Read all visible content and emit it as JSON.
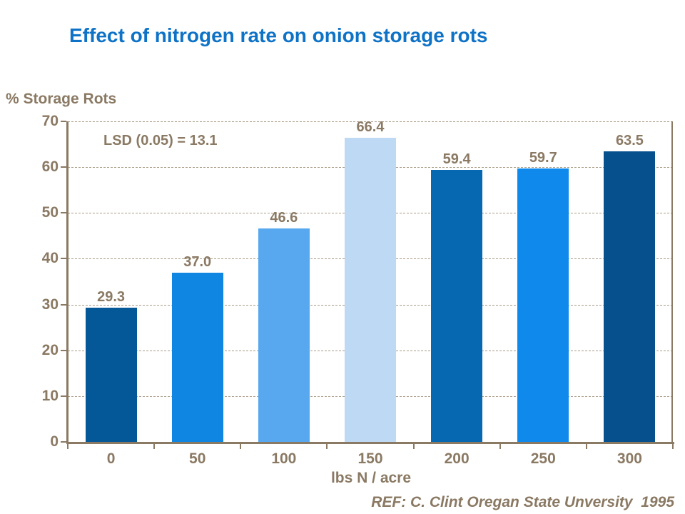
{
  "slide": {
    "title": "Effect of nitrogen rate on onion storage rots",
    "y_axis_title": "% Storage Rots",
    "annotation": "LSD (0.05) = 13.1",
    "x_axis_title": "lbs N / acre",
    "footer": "REF: C. Clint Oregan State Unversity  1995"
  },
  "colors": {
    "title_blue": "#0E72C6",
    "text_brown": "#8A7963",
    "axis_brown": "#8A7963",
    "gridline_brown": "#AA9C86",
    "bars": [
      "#055897",
      "#0E86E2",
      "#58A8EF",
      "#BDD9F4",
      "#0768B2",
      "#0F8AEC",
      "#07508E"
    ]
  },
  "chart_data": {
    "type": "bar",
    "title": "Effect of nitrogen rate on onion storage rots",
    "categories": [
      "0",
      "50",
      "100",
      "150",
      "200",
      "250",
      "300"
    ],
    "values": [
      29.3,
      37.0,
      46.6,
      66.4,
      59.4,
      59.7,
      63.5
    ],
    "value_labels": [
      "29.3",
      "37.0",
      "46.6",
      "66.4",
      "59.4",
      "59.7",
      "63.5"
    ],
    "xlabel": "lbs N / acre",
    "ylabel": "% Storage Rots",
    "ylim": [
      0,
      70
    ],
    "yticks": [
      0,
      10,
      20,
      30,
      40,
      50,
      60,
      70
    ],
    "grid": "horizontal-dashed",
    "legend": "none",
    "annotations": [
      "LSD (0.05) = 13.1"
    ],
    "source": "REF: C. Clint Oregan State Unversity  1995"
  }
}
